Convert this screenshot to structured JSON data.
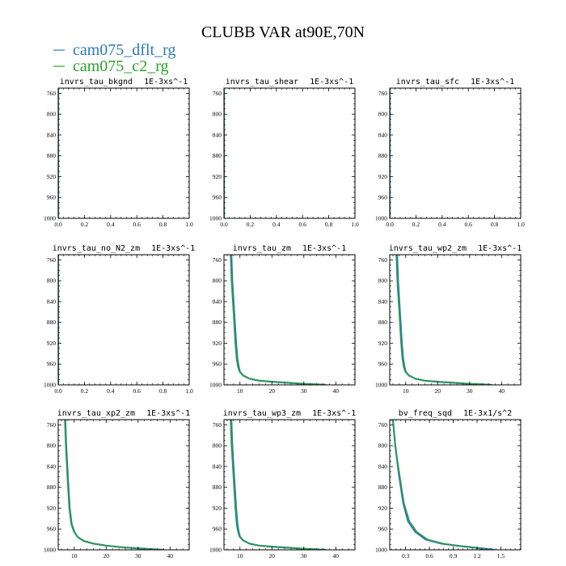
{
  "figure": {
    "title": "CLUBB VAR at90E,70N",
    "legend": [
      {
        "label": "cam075_dflt_rg",
        "color": "#2b7bba"
      },
      {
        "label": "cam075_c2_rg",
        "color": "#2ca02c"
      }
    ]
  },
  "chart_data": [
    {
      "type": "line",
      "title": "invrs_tau_bkgnd",
      "units": "1E-3xs^-1",
      "xlim": [
        0,
        1
      ],
      "xticks": [
        0.0,
        0.2,
        0.4,
        0.6,
        0.8,
        1.0
      ],
      "xtick_labels": [
        "0.0",
        "0.2",
        "0.4",
        "0.6",
        "0.8",
        "1.0"
      ],
      "ylim": [
        1000,
        750
      ],
      "yticks": [
        760,
        800,
        840,
        880,
        920,
        960,
        1000
      ],
      "series": [
        {
          "color": "#2b7bba",
          "x": [
            0,
            0
          ],
          "y": [
            750,
            1000
          ]
        },
        {
          "color": "#2ca02c",
          "x": [
            0,
            0
          ],
          "y": [
            750,
            1000
          ]
        }
      ]
    },
    {
      "type": "line",
      "title": "invrs_tau_shear",
      "units": "1E-3xs^-1",
      "xlim": [
        0,
        1
      ],
      "xticks": [
        0.0,
        0.2,
        0.4,
        0.6,
        0.8,
        1.0
      ],
      "xtick_labels": [
        "0.0",
        "0.2",
        "0.4",
        "0.6",
        "0.8",
        "1.0"
      ],
      "ylim": [
        1000,
        750
      ],
      "yticks": [
        760,
        800,
        840,
        880,
        920,
        960,
        1000
      ],
      "series": [
        {
          "color": "#2b7bba",
          "x": [
            0,
            0
          ],
          "y": [
            750,
            1000
          ]
        },
        {
          "color": "#2ca02c",
          "x": [
            0,
            0
          ],
          "y": [
            750,
            1000
          ]
        }
      ]
    },
    {
      "type": "line",
      "title": "invrs_tau_sfc",
      "units": "1E-3xs^-1",
      "xlim": [
        0,
        1
      ],
      "xticks": [
        0.0,
        0.2,
        0.4,
        0.6,
        0.8,
        1.0
      ],
      "xtick_labels": [
        "0.0",
        "0.2",
        "0.4",
        "0.6",
        "0.8",
        "1.0"
      ],
      "ylim": [
        1000,
        750
      ],
      "yticks": [
        760,
        800,
        840,
        880,
        920,
        960,
        1000
      ],
      "series": [
        {
          "color": "#2b7bba",
          "x": [
            0,
            0
          ],
          "y": [
            750,
            1000
          ]
        },
        {
          "color": "#2ca02c",
          "x": [
            0,
            0
          ],
          "y": [
            750,
            1000
          ]
        }
      ]
    },
    {
      "type": "line",
      "title": "invrs_tau_no_N2_zm",
      "units": "1E-3xs^-1",
      "xlim": [
        0,
        1
      ],
      "xticks": [
        0.0,
        0.2,
        0.4,
        0.6,
        0.8,
        1.0
      ],
      "xtick_labels": [
        "0.0",
        "0.2",
        "0.4",
        "0.6",
        "0.8",
        "1.0"
      ],
      "ylim": [
        1000,
        750
      ],
      "yticks": [
        760,
        800,
        840,
        880,
        920,
        960,
        1000
      ],
      "series": [
        {
          "color": "#2b7bba",
          "x": [
            0,
            0
          ],
          "y": [
            750,
            1000
          ]
        },
        {
          "color": "#2ca02c",
          "x": [
            0,
            0
          ],
          "y": [
            750,
            1000
          ]
        }
      ]
    },
    {
      "type": "line",
      "title": "invrs_tau_zm",
      "units": "1E-3xs^-1",
      "xlim": [
        5,
        46
      ],
      "xticks": [
        10,
        20,
        30,
        40
      ],
      "xtick_labels": [
        "10",
        "20",
        "30",
        "40"
      ],
      "ylim": [
        1000,
        750
      ],
      "yticks": [
        760,
        800,
        840,
        880,
        920,
        960,
        1000
      ],
      "series": [
        {
          "color": "#2b7bba",
          "x": [
            7.3,
            7.6,
            8.2,
            8.8,
            9.2,
            9.6,
            10,
            11,
            13,
            16,
            20,
            25,
            30,
            34,
            37
          ],
          "y": [
            750,
            800,
            860,
            920,
            950,
            965,
            975,
            982,
            988,
            992,
            994,
            996,
            998,
            999,
            1000
          ]
        },
        {
          "color": "#2ca02c",
          "x": [
            7.0,
            7.3,
            7.9,
            8.5,
            8.9,
            9.3,
            9.8,
            11,
            13,
            16,
            20,
            25,
            30,
            34,
            37
          ],
          "y": [
            750,
            800,
            860,
            920,
            950,
            965,
            975,
            982,
            988,
            992,
            994,
            996,
            998,
            999,
            1000
          ]
        }
      ]
    },
    {
      "type": "line",
      "title": "invrs_tau_wp2_zm",
      "units": "1E-3xs^-1",
      "xlim": [
        5,
        46
      ],
      "xticks": [
        10,
        20,
        30,
        40
      ],
      "xtick_labels": [
        "10",
        "20",
        "30",
        "40"
      ],
      "ylim": [
        1000,
        750
      ],
      "yticks": [
        760,
        800,
        840,
        880,
        920,
        960,
        1000
      ],
      "series": [
        {
          "color": "#2b7bba",
          "x": [
            7.3,
            7.6,
            8.2,
            8.8,
            9.2,
            9.6,
            10,
            11,
            13,
            16,
            20,
            25,
            30,
            34,
            37
          ],
          "y": [
            750,
            800,
            860,
            920,
            950,
            965,
            975,
            982,
            988,
            992,
            994,
            996,
            998,
            999,
            1000
          ]
        },
        {
          "color": "#2ca02c",
          "x": [
            7.0,
            7.3,
            7.9,
            8.5,
            8.9,
            9.3,
            9.8,
            11,
            13,
            16,
            20,
            25,
            30,
            34,
            37
          ],
          "y": [
            750,
            800,
            860,
            920,
            950,
            965,
            975,
            982,
            988,
            992,
            994,
            996,
            998,
            999,
            1000
          ]
        }
      ]
    },
    {
      "type": "line",
      "title": "invrs_tau_xp2_zm",
      "units": "1E-3xs^-1",
      "xlim": [
        5,
        46
      ],
      "xticks": [
        10,
        20,
        30,
        40
      ],
      "xtick_labels": [
        "10",
        "20",
        "30",
        "40"
      ],
      "ylim": [
        1000,
        750
      ],
      "yticks": [
        760,
        800,
        840,
        880,
        920,
        960,
        1000
      ],
      "series": [
        {
          "color": "#2b7bba",
          "x": [
            7.2,
            7.5,
            8.0,
            8.6,
            9.2,
            10,
            11,
            13,
            16,
            20,
            25,
            30,
            35,
            38
          ],
          "y": [
            750,
            800,
            860,
            920,
            950,
            965,
            975,
            983,
            988,
            992,
            995,
            997,
            999,
            1000
          ]
        },
        {
          "color": "#2ca02c",
          "x": [
            7.0,
            7.3,
            7.8,
            8.4,
            9.0,
            9.8,
            11,
            13,
            16,
            20,
            25,
            30,
            35,
            38
          ],
          "y": [
            750,
            800,
            860,
            920,
            950,
            965,
            975,
            983,
            988,
            992,
            995,
            997,
            999,
            1000
          ]
        }
      ]
    },
    {
      "type": "line",
      "title": "invrs_tau_wp3_zm",
      "units": "1E-3xs^-1",
      "xlim": [
        5,
        46
      ],
      "xticks": [
        10,
        20,
        30,
        40
      ],
      "xtick_labels": [
        "10",
        "20",
        "30",
        "40"
      ],
      "ylim": [
        1000,
        750
      ],
      "yticks": [
        760,
        800,
        840,
        880,
        920,
        960,
        1000
      ],
      "series": [
        {
          "color": "#2b7bba",
          "x": [
            7.3,
            7.6,
            8.2,
            8.8,
            9.2,
            9.6,
            10,
            11,
            13,
            16,
            20,
            25,
            30,
            34,
            37
          ],
          "y": [
            750,
            800,
            860,
            920,
            950,
            965,
            975,
            982,
            988,
            992,
            994,
            996,
            998,
            999,
            1000
          ]
        },
        {
          "color": "#2ca02c",
          "x": [
            7.0,
            7.3,
            7.9,
            8.5,
            8.9,
            9.3,
            9.8,
            11,
            13,
            16,
            20,
            25,
            30,
            34,
            37
          ],
          "y": [
            750,
            800,
            860,
            920,
            950,
            965,
            975,
            982,
            988,
            992,
            994,
            996,
            998,
            999,
            1000
          ]
        }
      ]
    },
    {
      "type": "line",
      "title": "bv_freq_sqd",
      "units": "1E-3x1/s^2",
      "xlim": [
        0.1,
        1.75
      ],
      "xticks": [
        0.3,
        0.6,
        0.9,
        1.2,
        1.5
      ],
      "xtick_labels": [
        "0.3",
        "0.6",
        "0.9",
        "1.2",
        "1.5"
      ],
      "ylim": [
        1000,
        750
      ],
      "yticks": [
        760,
        800,
        840,
        880,
        920,
        960,
        1000
      ],
      "series": [
        {
          "color": "#2b7bba",
          "x": [
            0.14,
            0.17,
            0.22,
            0.27,
            0.33,
            0.42,
            0.55,
            0.75,
            1.0,
            1.25,
            1.42
          ],
          "y": [
            750,
            800,
            860,
            910,
            945,
            965,
            980,
            988,
            993,
            997,
            1000
          ]
        },
        {
          "color": "#2ca02c",
          "x": [
            0.14,
            0.17,
            0.23,
            0.28,
            0.35,
            0.44,
            0.58,
            0.78,
            1.0,
            1.2,
            1.3
          ],
          "y": [
            750,
            800,
            860,
            910,
            945,
            965,
            980,
            988,
            993,
            997,
            1000
          ]
        }
      ]
    }
  ]
}
